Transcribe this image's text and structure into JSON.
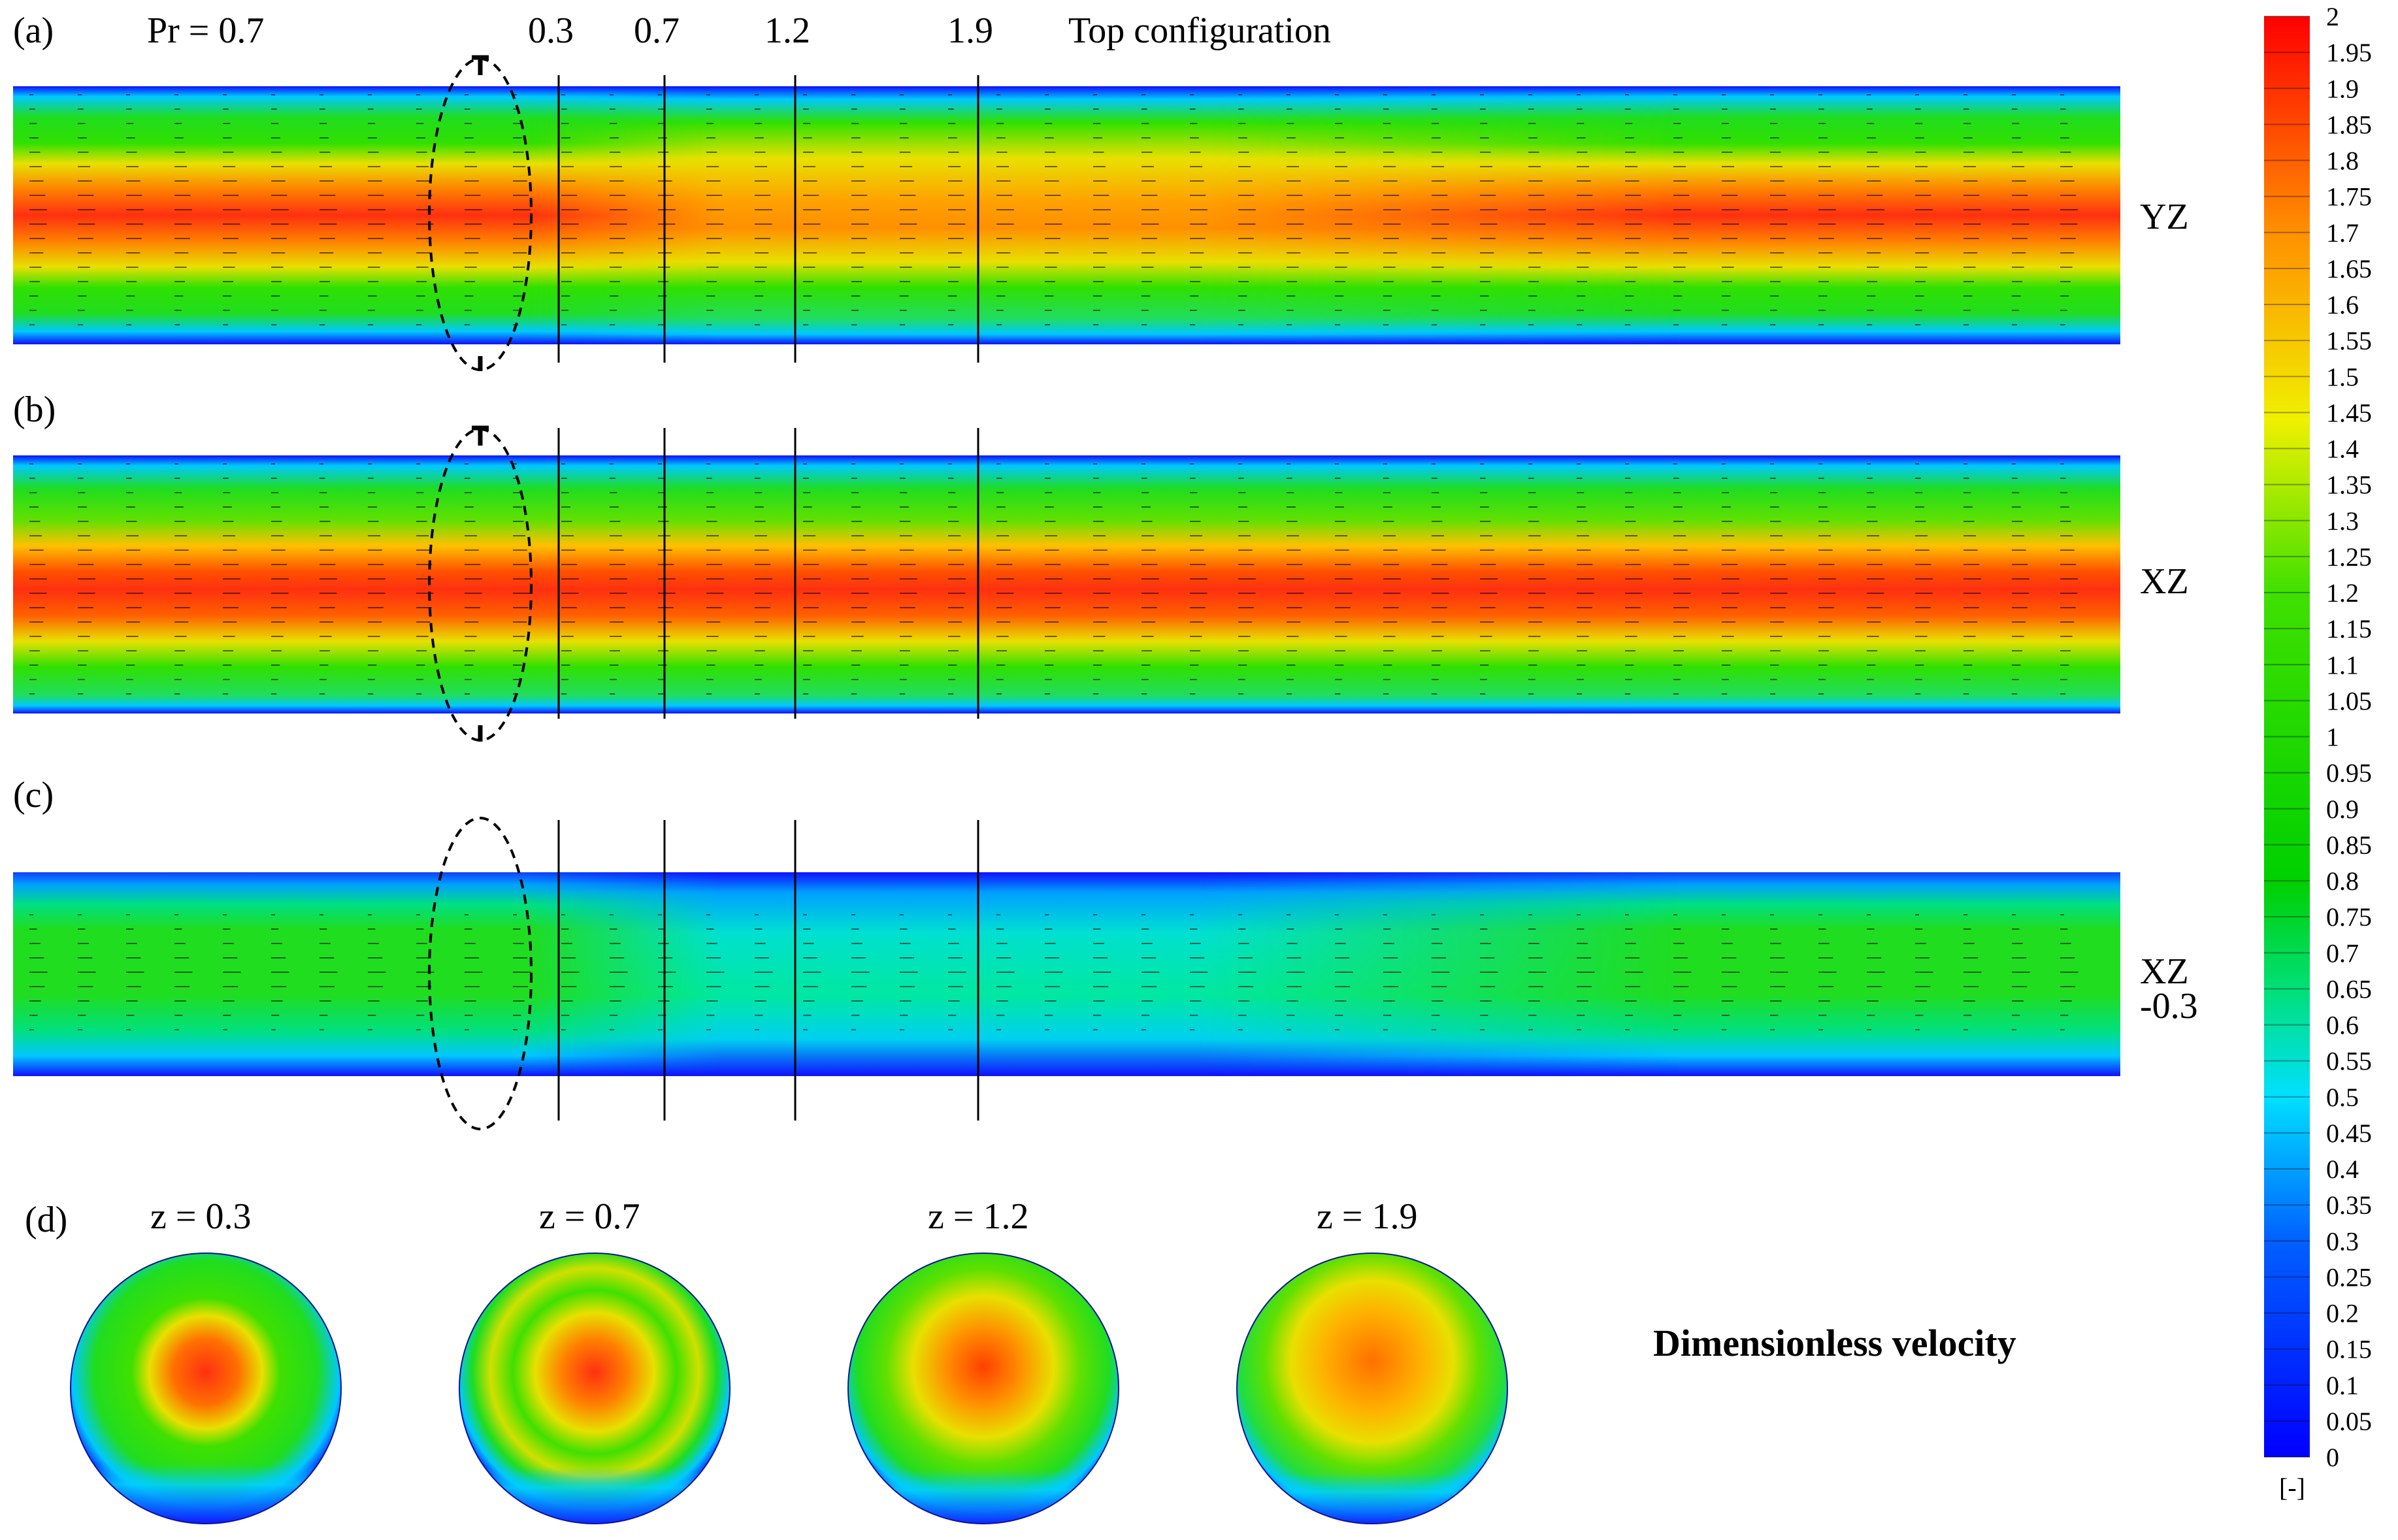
{
  "figure": {
    "panel_a": {
      "label": "(a)",
      "pr": "Pr = 0.7",
      "config": "Top configuration",
      "plane": "YZ"
    },
    "panel_b": {
      "label": "(b)",
      "plane": "XZ"
    },
    "panel_c": {
      "label": "(c)",
      "plane": "XZ",
      "plane_offset": "-0.3"
    },
    "panel_d": {
      "label": "(d)"
    },
    "section_marks": [
      "0.3",
      "0.7",
      "1.2",
      "1.9"
    ],
    "cross_sections": [
      "z = 0.3",
      "z = 0.7",
      "z = 1.2",
      "z = 1.9"
    ],
    "field_title": "Dimensionless velocity"
  },
  "colorbar": {
    "unit": "[-]",
    "ticks": [
      "2",
      "1.95",
      "1.9",
      "1.85",
      "1.8",
      "1.75",
      "1.7",
      "1.65",
      "1.6",
      "1.55",
      "1.5",
      "1.45",
      "1.4",
      "1.35",
      "1.3",
      "1.25",
      "1.2",
      "1.15",
      "1.1",
      "1.05",
      "1",
      "0.95",
      "0.9",
      "0.85",
      "0.8",
      "0.75",
      "0.7",
      "0.65",
      "0.6",
      "0.55",
      "0.5",
      "0.45",
      "0.4",
      "0.35",
      "0.3",
      "0.25",
      "0.2",
      "0.15",
      "0.1",
      "0.05",
      "0"
    ],
    "colors": {
      "min": "#0000ff",
      "max": "#ff0000"
    }
  }
}
